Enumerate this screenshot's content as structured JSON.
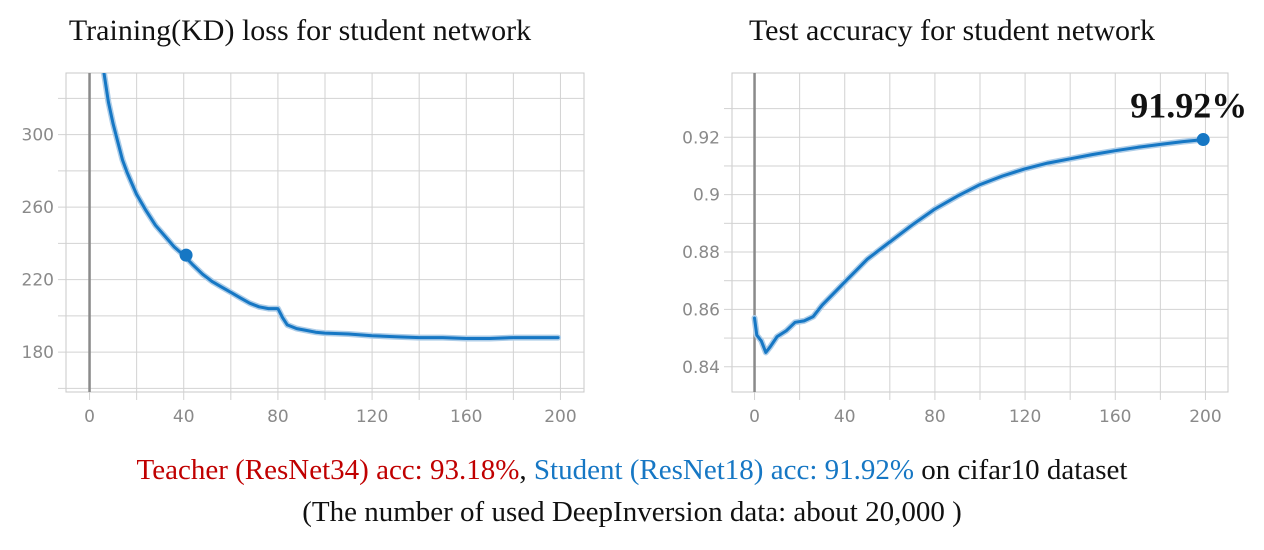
{
  "colors": {
    "series": "#1677c4",
    "teacher": "#c00000",
    "student": "#1677c4",
    "text": "#111111"
  },
  "caption": {
    "teacher": "Teacher (ResNet34) acc: 93.18%",
    "comma": ", ",
    "student": "Student (ResNet18) acc: 91.92%",
    "suffix": " on cifar10 dataset",
    "note": "(The number of used DeepInversion data: about 20,000 )"
  },
  "chart_data": [
    {
      "type": "line",
      "title": "Training(KD) loss for student network",
      "xlabel": "",
      "ylabel": "",
      "xlim": [
        -10,
        210
      ],
      "ylim": [
        158,
        334
      ],
      "x_ticks": [
        0,
        40,
        80,
        120,
        160,
        200
      ],
      "x_ticks_minor": [
        -20,
        20,
        60,
        100,
        140,
        180
      ],
      "y_ticks": [
        180,
        220,
        260,
        300
      ],
      "y_ticks_minor": [
        160,
        200,
        240,
        280,
        320
      ],
      "grid": true,
      "marker": {
        "x": 41,
        "y": 233.5
      },
      "series": [
        {
          "x": [
            6,
            8,
            10,
            12,
            14,
            16,
            18,
            20,
            24,
            28,
            32,
            36,
            40,
            44,
            48,
            52,
            56,
            60,
            64,
            68,
            72,
            76,
            80,
            82,
            84,
            88,
            92,
            96,
            100,
            110,
            120,
            130,
            140,
            150,
            160,
            170,
            180,
            190,
            199
          ],
          "y": [
            335,
            318,
            306,
            296,
            286,
            279,
            273,
            267,
            258,
            250,
            244,
            238,
            233.5,
            228,
            223,
            219,
            216,
            213,
            210,
            207,
            205,
            204,
            204,
            199,
            195,
            193,
            192,
            191,
            190.5,
            190,
            189,
            188.5,
            188,
            188,
            187.5,
            187.5,
            188,
            188,
            188
          ]
        }
      ]
    },
    {
      "type": "line",
      "title": "Test accuracy for student network",
      "xlabel": "",
      "ylabel": "",
      "xlim": [
        -10,
        210
      ],
      "ylim": [
        0.8312,
        0.9424
      ],
      "x_ticks": [
        0,
        40,
        80,
        120,
        160,
        200
      ],
      "x_ticks_minor": [
        -20,
        20,
        60,
        100,
        140,
        180
      ],
      "y_ticks": [
        0.84,
        0.86,
        0.88,
        0.9,
        0.92
      ],
      "y_tick_labels": [
        "0.84",
        "0.86",
        "0.88",
        "0.9",
        "0.92"
      ],
      "y_ticks_minor": [
        0.83,
        0.85,
        0.87,
        0.89,
        0.91,
        0.93
      ],
      "grid": true,
      "marker": {
        "x": 199,
        "y": 0.9192
      },
      "annotation": "91.92%",
      "series": [
        {
          "x": [
            0,
            1,
            3,
            5,
            7,
            10,
            14,
            18,
            22,
            26,
            30,
            35,
            40,
            45,
            50,
            55,
            60,
            70,
            80,
            90,
            100,
            110,
            120,
            130,
            140,
            150,
            160,
            170,
            180,
            190,
            199
          ],
          "y": [
            0.857,
            0.851,
            0.849,
            0.845,
            0.847,
            0.8505,
            0.8525,
            0.8555,
            0.856,
            0.8575,
            0.8615,
            0.8655,
            0.8695,
            0.8735,
            0.8775,
            0.8805,
            0.8835,
            0.8895,
            0.895,
            0.8995,
            0.9035,
            0.9065,
            0.909,
            0.911,
            0.9125,
            0.914,
            0.9153,
            0.9165,
            0.9175,
            0.9185,
            0.9192
          ]
        }
      ]
    }
  ]
}
